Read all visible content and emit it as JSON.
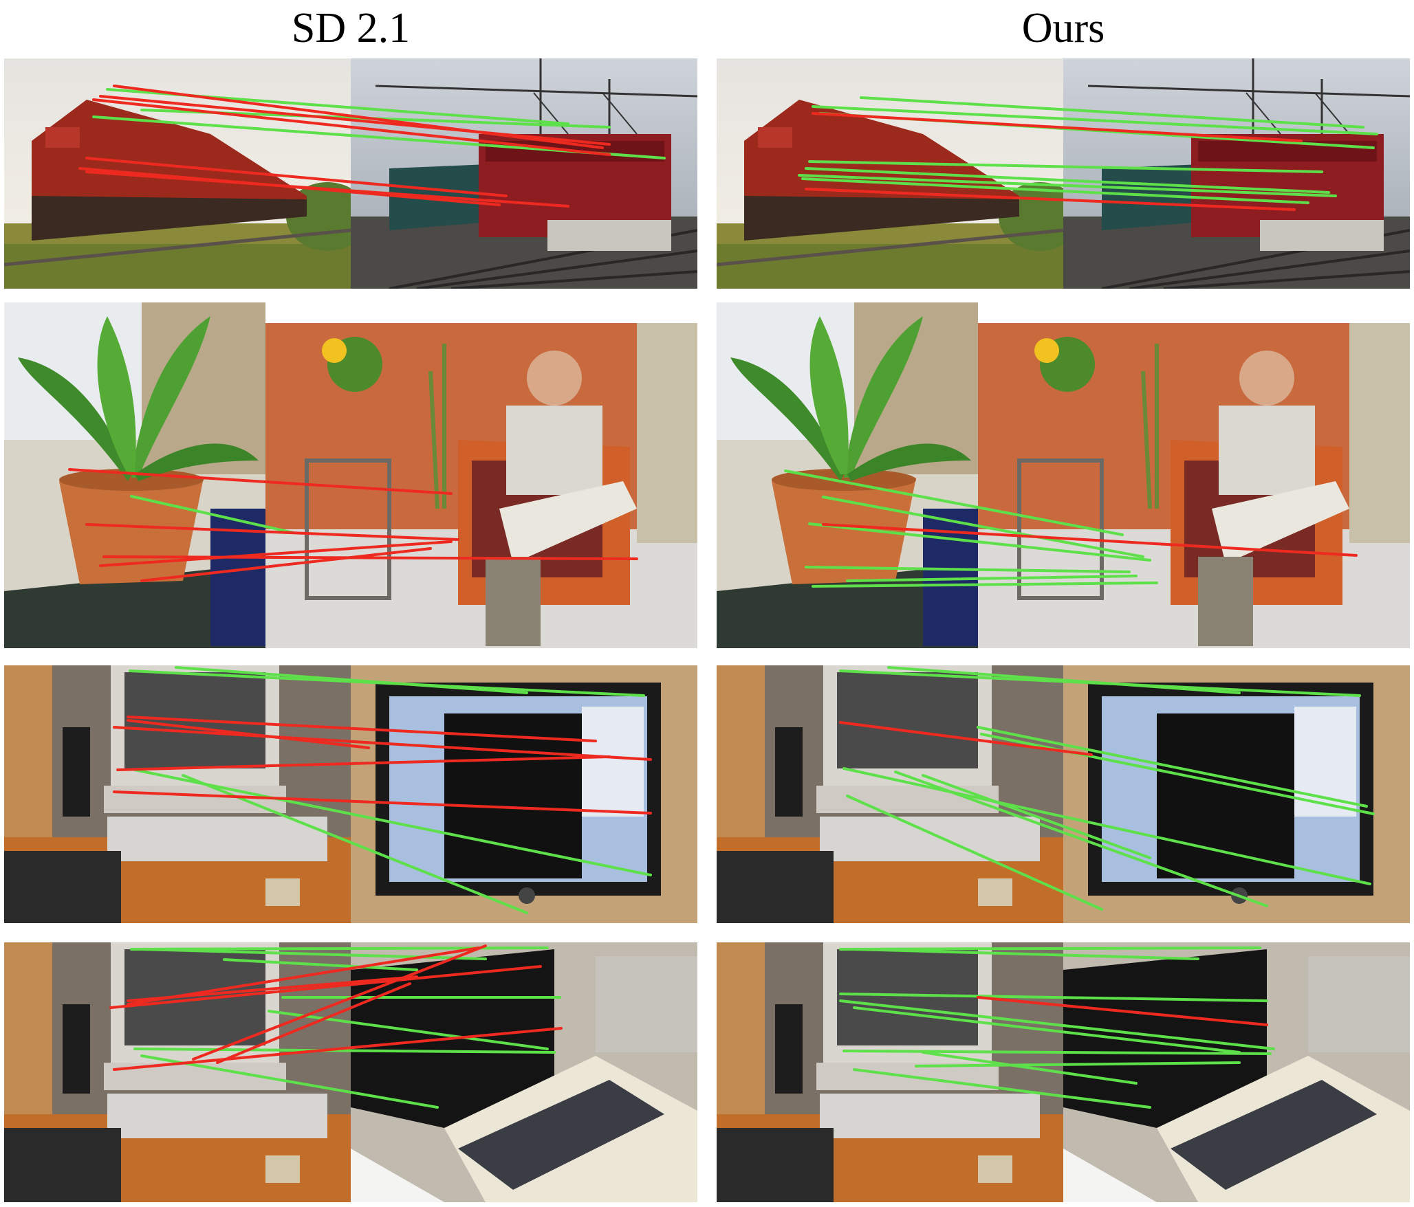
{
  "columns": [
    {
      "title": "SD 2.1"
    },
    {
      "title": "Ours"
    }
  ],
  "colors": {
    "correct_match": "#5ee04a",
    "wrong_match": "#ee2a20"
  },
  "rows": [
    {
      "scene": "train",
      "panels": [
        {
          "correct": 3,
          "wrong": 6
        },
        {
          "correct": 7,
          "wrong": 2
        }
      ]
    },
    {
      "scene": "plant-and-man",
      "panels": [
        {
          "correct": 1,
          "wrong": 5
        },
        {
          "correct": 6,
          "wrong": 1
        }
      ]
    },
    {
      "scene": "desktop-monitor",
      "panels": [
        {
          "correct": 4,
          "wrong": 5
        },
        {
          "correct": 8,
          "wrong": 1
        }
      ]
    },
    {
      "scene": "desktop-retro-computer",
      "panels": [
        {
          "correct": 7,
          "wrong": 6
        },
        {
          "correct": 9,
          "wrong": 1
        }
      ]
    }
  ]
}
